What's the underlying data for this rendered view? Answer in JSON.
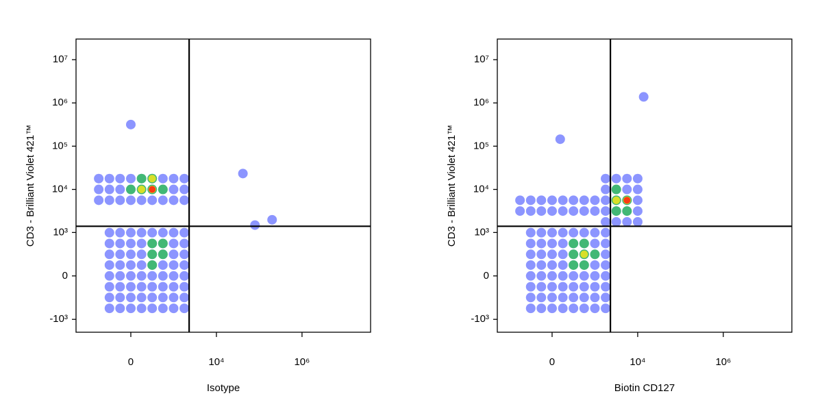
{
  "chart_data": [
    {
      "type": "scatter",
      "xlabel": "Isotype",
      "ylabel": "CD3 - Brilliant Violet 421™",
      "xscale": "biexponential",
      "yscale": "biexponential",
      "xlim": [
        -1900,
        40000000
      ],
      "ylim": [
        -2000,
        30000000
      ],
      "xticks": [
        0,
        {
          "value": 10000,
          "label": "10⁴"
        },
        {
          "value": 1000000,
          "label": "10⁶"
        }
      ],
      "yticks": [
        {
          "value": -1000,
          "label": "-10³"
        },
        0,
        {
          "value": 1000,
          "label": "10³"
        },
        {
          "value": 10000,
          "label": "10⁴"
        },
        {
          "value": 100000,
          "label": "10⁵"
        },
        {
          "value": 1000000,
          "label": "10⁶"
        },
        {
          "value": 10000000,
          "label": "10⁷"
        }
      ],
      "gates": {
        "x": 2300,
        "y": 1400
      },
      "series": [
        {
          "color": "#1a2cff",
          "x": [
            -544,
            -284,
            -122,
            0,
            122,
            284,
            544,
            990,
            1772,
            -544,
            -284,
            -122,
            0,
            122,
            284,
            544,
            990,
            1772,
            -544,
            -284,
            -122,
            0,
            122,
            284,
            544,
            990,
            1772,
            -284,
            -122,
            0,
            122,
            284,
            544,
            990,
            1772,
            -284,
            -122,
            0,
            122,
            284,
            544,
            990,
            1772,
            -284,
            -122,
            0,
            122,
            284,
            544,
            990,
            1772,
            -284,
            -122,
            0,
            122,
            284,
            544,
            990,
            1772,
            -284,
            -122,
            0,
            122,
            284,
            544,
            990,
            1772,
            -284,
            -122,
            0,
            122,
            284,
            544,
            990,
            1772,
            -284,
            -122,
            0,
            122,
            284,
            544,
            990,
            1772,
            -284,
            -122,
            0,
            122,
            284,
            544,
            990,
            1772,
            0,
            41600,
            79600,
            200000
          ],
          "y": [
            5620,
            5620,
            5620,
            5620,
            5620,
            5620,
            5620,
            5620,
            5620,
            10000,
            10000,
            10000,
            10000,
            10000,
            10000,
            10000,
            10000,
            10000,
            17800,
            17800,
            17800,
            17800,
            17800,
            17800,
            17800,
            17800,
            17800,
            -544,
            -544,
            -544,
            -544,
            -544,
            -544,
            -544,
            -544,
            -284,
            -284,
            -284,
            -284,
            -284,
            -284,
            -284,
            -284,
            -122,
            -122,
            -122,
            -122,
            -122,
            -122,
            -122,
            -122,
            0,
            0,
            0,
            0,
            0,
            0,
            0,
            0,
            122,
            122,
            122,
            122,
            122,
            122,
            122,
            122,
            284,
            284,
            284,
            284,
            284,
            284,
            284,
            284,
            544,
            544,
            544,
            544,
            544,
            544,
            544,
            544,
            990,
            990,
            990,
            990,
            990,
            990,
            990,
            990,
            316000,
            23300,
            1490,
            1980
          ]
        },
        {
          "color": "#22c83a",
          "x": [
            0,
            122,
            284,
            544,
            122,
            284,
            284,
            544,
            284,
            544,
            284
          ],
          "y": [
            10000,
            10000,
            10000,
            10000,
            17800,
            17800,
            284,
            284,
            544,
            544,
            122
          ]
        },
        {
          "color": "#f2e51c",
          "x": [
            122,
            284,
            284
          ],
          "y": [
            10000,
            17800,
            10000
          ]
        },
        {
          "color": "#ff2a10",
          "x": [
            284
          ],
          "y": [
            10000
          ]
        }
      ]
    },
    {
      "type": "scatter",
      "xlabel": "Biotin CD127",
      "ylabel": "CD3 - Brilliant Violet 421™",
      "xscale": "biexponential",
      "yscale": "biexponential",
      "xlim": [
        -1900,
        40000000
      ],
      "ylim": [
        -2000,
        30000000
      ],
      "xticks": [
        0,
        {
          "value": 10000,
          "label": "10⁴"
        },
        {
          "value": 1000000,
          "label": "10⁶"
        }
      ],
      "yticks": [
        {
          "value": -1000,
          "label": "-10³"
        },
        0,
        {
          "value": 1000,
          "label": "10³"
        },
        {
          "value": 10000,
          "label": "10⁴"
        },
        {
          "value": 100000,
          "label": "10⁵"
        },
        {
          "value": 1000000,
          "label": "10⁶"
        },
        {
          "value": 10000000,
          "label": "10⁷"
        }
      ],
      "gates": {
        "x": 2300,
        "y": 1400
      },
      "series": [
        {
          "color": "#1a2cff",
          "x": [
            -544,
            -284,
            -122,
            0,
            122,
            284,
            544,
            990,
            -544,
            -284,
            -122,
            0,
            122,
            284,
            544,
            990,
            1772,
            3160,
            5620,
            10000,
            1772,
            3160,
            5620,
            10000,
            1772,
            3160,
            5620,
            10000,
            1772,
            3160,
            5620,
            10000,
            1772,
            3160,
            5620,
            10000,
            -284,
            -122,
            0,
            122,
            284,
            544,
            990,
            1772,
            -284,
            -122,
            0,
            122,
            284,
            544,
            990,
            1772,
            -284,
            -122,
            0,
            122,
            284,
            544,
            990,
            1772,
            -284,
            -122,
            0,
            122,
            284,
            544,
            990,
            1772,
            -284,
            -122,
            0,
            122,
            284,
            544,
            990,
            1772,
            -284,
            -122,
            0,
            122,
            284,
            544,
            990,
            1772,
            -284,
            -122,
            0,
            122,
            284,
            544,
            990,
            1772,
            -284,
            -122,
            0,
            122,
            284,
            544,
            990,
            1772,
            13800,
            90
          ],
          "y": [
            3160,
            3160,
            3160,
            3160,
            3160,
            3160,
            3160,
            3160,
            5620,
            5620,
            5620,
            5620,
            5620,
            5620,
            5620,
            5620,
            1772,
            1772,
            1772,
            1772,
            3160,
            3160,
            3160,
            3160,
            5620,
            5620,
            5620,
            5620,
            10000,
            10000,
            10000,
            10000,
            17800,
            17800,
            17800,
            17800,
            -544,
            -544,
            -544,
            -544,
            -544,
            -544,
            -544,
            -544,
            -284,
            -284,
            -284,
            -284,
            -284,
            -284,
            -284,
            -284,
            -122,
            -122,
            -122,
            -122,
            -122,
            -122,
            -122,
            -122,
            0,
            0,
            0,
            0,
            0,
            0,
            0,
            0,
            122,
            122,
            122,
            122,
            122,
            122,
            122,
            122,
            284,
            284,
            284,
            284,
            284,
            284,
            284,
            284,
            544,
            544,
            544,
            544,
            544,
            544,
            544,
            544,
            990,
            990,
            990,
            990,
            990,
            990,
            990,
            990,
            1380000,
            145000
          ]
        },
        {
          "color": "#22c83a",
          "x": [
            284,
            544,
            284,
            544,
            544,
            284,
            990,
            3160,
            5620,
            3160,
            5620,
            3160
          ],
          "y": [
            122,
            122,
            284,
            284,
            544,
            544,
            284,
            3160,
            3160,
            5620,
            5620,
            10000
          ]
        },
        {
          "color": "#f2e51c",
          "x": [
            544,
            5620,
            3160
          ],
          "y": [
            284,
            5620,
            5620
          ]
        },
        {
          "color": "#ff2a10",
          "x": [
            5620
          ],
          "y": [
            5620
          ]
        }
      ]
    }
  ]
}
